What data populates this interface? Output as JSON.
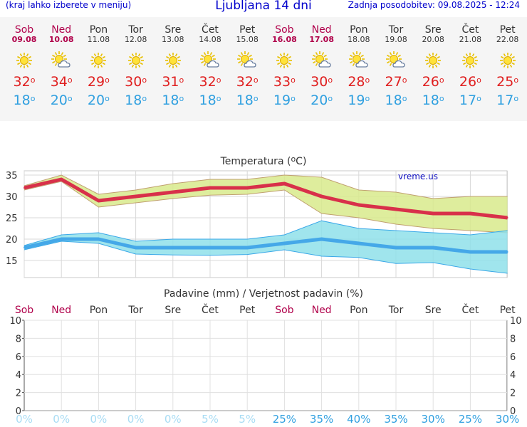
{
  "header": {
    "left": "(kraj lahko izberete v meniju)",
    "title": "Ljubljana 14 dni",
    "right": "Zadnja posodobitev: 09.08.2025 - 12:24"
  },
  "days": [
    {
      "name": "Sob",
      "date": "09.08",
      "weekend": true,
      "icon": "sun-icon",
      "max": "32",
      "min": "18"
    },
    {
      "name": "Ned",
      "date": "10.08",
      "weekend": true,
      "icon": "partly-cloudy-icon",
      "max": "34",
      "min": "20"
    },
    {
      "name": "Pon",
      "date": "11.08",
      "weekend": false,
      "icon": "sun-icon",
      "max": "29",
      "min": "20"
    },
    {
      "name": "Tor",
      "date": "12.08",
      "weekend": false,
      "icon": "sun-icon",
      "max": "30",
      "min": "18"
    },
    {
      "name": "Sre",
      "date": "13.08",
      "weekend": false,
      "icon": "sun-icon",
      "max": "31",
      "min": "18"
    },
    {
      "name": "Čet",
      "date": "14.08",
      "weekend": false,
      "icon": "partly-cloudy-icon",
      "max": "32",
      "min": "18"
    },
    {
      "name": "Pet",
      "date": "15.08",
      "weekend": false,
      "icon": "partly-cloudy-icon",
      "max": "32",
      "min": "18"
    },
    {
      "name": "Sob",
      "date": "16.08",
      "weekend": true,
      "icon": "sun-icon",
      "max": "33",
      "min": "19"
    },
    {
      "name": "Ned",
      "date": "17.08",
      "weekend": true,
      "icon": "partly-cloudy-icon",
      "max": "30",
      "min": "20"
    },
    {
      "name": "Pon",
      "date": "18.08",
      "weekend": false,
      "icon": "partly-cloudy-icon",
      "max": "28",
      "min": "19"
    },
    {
      "name": "Tor",
      "date": "19.08",
      "weekend": false,
      "icon": "partly-cloudy-icon",
      "max": "27",
      "min": "18"
    },
    {
      "name": "Sre",
      "date": "20.08",
      "weekend": false,
      "icon": "sun-icon",
      "max": "26",
      "min": "18"
    },
    {
      "name": "Čet",
      "date": "21.08",
      "weekend": false,
      "icon": "sun-icon",
      "max": "26",
      "min": "17"
    },
    {
      "name": "Pet",
      "date": "22.08",
      "weekend": false,
      "icon": "sun-icon",
      "max": "25",
      "min": "17"
    }
  ],
  "deg_symbol": "o",
  "colors": {
    "max": "#e02020",
    "min": "#30a0e0",
    "max_band": "#d8ea8c",
    "min_band": "#8fe0ea",
    "max_line": "#d8304a",
    "min_line": "#45a8e8",
    "weekend": "#b0004a"
  },
  "chart_data": [
    {
      "type": "line",
      "title": "Temperatura (",
      "title_unit": "C)",
      "watermark": "vreme.us",
      "ylim": [
        11,
        36
      ],
      "yticks": [
        15,
        20,
        25,
        30,
        35
      ],
      "series": [
        {
          "values": [
            32,
            34,
            29,
            30,
            31,
            32,
            32,
            33,
            30,
            28,
            27,
            26,
            26,
            25
          ]
        },
        {
          "values": [
            18,
            20,
            20,
            18,
            18,
            18,
            18,
            19,
            20,
            19,
            18,
            18,
            17,
            17
          ]
        }
      ],
      "bands": [
        {
          "upper": [
            32.5,
            35,
            30.5,
            31.5,
            33,
            34,
            34,
            35,
            34.5,
            31.5,
            31,
            29.5,
            30,
            30
          ],
          "lower": [
            31.5,
            33.5,
            27.5,
            28.5,
            29.5,
            30.3,
            30.5,
            31.5,
            26,
            25,
            23.5,
            22.5,
            22,
            21.5
          ]
        },
        {
          "upper": [
            18.5,
            21,
            21.5,
            19.5,
            20,
            20,
            20,
            21,
            24.3,
            22.5,
            22,
            21.5,
            21,
            22
          ],
          "lower": [
            17.5,
            19.5,
            19,
            16.5,
            16.3,
            16.2,
            16.4,
            17.5,
            16,
            15.7,
            14.3,
            14.5,
            13,
            12
          ]
        }
      ]
    },
    {
      "type": "bar",
      "title": "Padavine (mm) / Verjetnost padavin (%)",
      "ylim": [
        0,
        10
      ],
      "yticks": [
        0,
        2,
        4,
        6,
        8,
        10
      ],
      "values": [
        0,
        0,
        0,
        0,
        0,
        0,
        0,
        0,
        0,
        0,
        0,
        0,
        0,
        0
      ],
      "probability": [
        "0%",
        "0%",
        "0%",
        "0%",
        "0%",
        "5%",
        "5%",
        "25%",
        "35%",
        "40%",
        "35%",
        "30%",
        "25%",
        "30%"
      ]
    }
  ]
}
